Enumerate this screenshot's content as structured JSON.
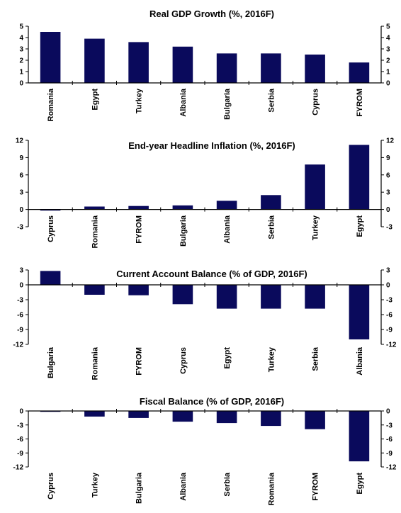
{
  "chart_data": [
    {
      "type": "bar",
      "title": "Real GDP Growth (%, 2016F)",
      "categories": [
        "Romania",
        "Egypt",
        "Turkey",
        "Albania",
        "Bulgaria",
        "Serbia",
        "Cyprus",
        "FYROM"
      ],
      "values": [
        4.5,
        3.9,
        3.6,
        3.2,
        2.6,
        2.6,
        2.5,
        1.8
      ],
      "ylim": [
        0,
        5
      ],
      "yticks": [
        0,
        1,
        2,
        3,
        4,
        5
      ],
      "color": "#0a0a5c"
    },
    {
      "type": "bar",
      "title": "End-year Headline Inflation (%, 2016F)",
      "categories": [
        "Cyprus",
        "Romania",
        "FYROM",
        "Bulgaria",
        "Albania",
        "Serbia",
        "Turkey",
        "Egypt"
      ],
      "values": [
        -0.2,
        0.5,
        0.6,
        0.7,
        1.5,
        2.5,
        7.8,
        11.2
      ],
      "ylim": [
        -3,
        12
      ],
      "yticks": [
        -3,
        0,
        3,
        6,
        9,
        12
      ],
      "color": "#0a0a5c"
    },
    {
      "type": "bar",
      "title": "Current Account Balance (% of GDP, 2016F)",
      "categories": [
        "Bulgaria",
        "Romania",
        "FYROM",
        "Cyprus",
        "Egypt",
        "Turkey",
        "Serbia",
        "Albania"
      ],
      "values": [
        2.8,
        -2.0,
        -2.1,
        -3.9,
        -4.8,
        -4.8,
        -4.8,
        -11.0
      ],
      "ylim": [
        -12,
        3
      ],
      "yticks": [
        -12,
        -9,
        -6,
        -3,
        0,
        3
      ],
      "color": "#0a0a5c"
    },
    {
      "type": "bar",
      "title": "Fiscal Balance (% of GDP, 2016F)",
      "categories": [
        "Cyprus",
        "Turkey",
        "Bulgaria",
        "Albania",
        "Serbia",
        "Romania",
        "FYROM",
        "Egypt"
      ],
      "values": [
        -0.1,
        -1.2,
        -1.5,
        -2.3,
        -2.6,
        -3.2,
        -3.9,
        -10.8
      ],
      "ylim": [
        -12,
        0
      ],
      "yticks": [
        -12,
        -9,
        -6,
        -3,
        0
      ],
      "color": "#0a0a5c"
    }
  ]
}
